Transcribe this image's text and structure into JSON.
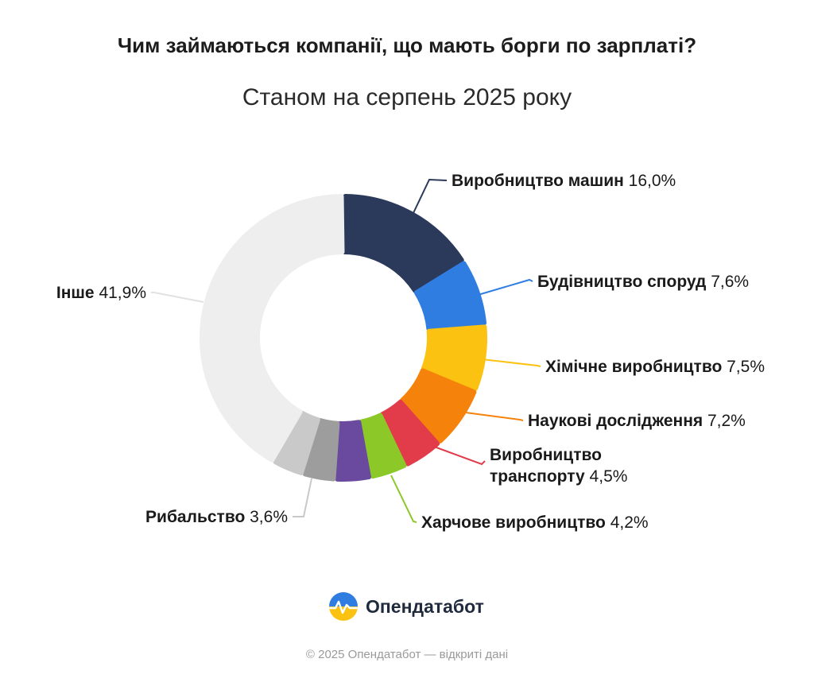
{
  "header": {
    "title": "Чим займаються компанії, що мають борги по зарплаті?",
    "subtitle": "Станом на серпень 2025 року"
  },
  "brand": {
    "name": "Опендатабот",
    "logo_icon": "opendatabot-logo-icon"
  },
  "footer": {
    "text": "© 2025 Опендатабот — відкриті дані"
  },
  "chart_data": {
    "type": "pie",
    "subtype": "donut",
    "labels_outside_with_leaders": true,
    "slices": [
      {
        "label": "Виробництво машин",
        "value": 16.0,
        "value_label": "16,0%",
        "color": "#2b3a5a"
      },
      {
        "label": "Будівництво споруд",
        "value": 7.6,
        "value_label": "7,6%",
        "color": "#2f7de1"
      },
      {
        "label": "Хімічне виробництво",
        "value": 7.5,
        "value_label": "7,5%",
        "color": "#fbc211"
      },
      {
        "label": "Наукові дослідження",
        "value": 7.2,
        "value_label": "7,2%",
        "color": "#f5820b"
      },
      {
        "label": "Виробництво транспорту",
        "value": 4.5,
        "value_label": "4,5%",
        "color": "#e23c4b"
      },
      {
        "label": "Харчове виробництво",
        "value": 4.2,
        "value_label": "4,2%",
        "color": "#8cc928"
      },
      {
        "label": "",
        "value": 4.0,
        "value_label": "",
        "color": "#6a4a9e"
      },
      {
        "label": "",
        "value": 3.7,
        "value_label": "",
        "color": "#9d9d9d"
      },
      {
        "label": "Рибальство",
        "value": 3.6,
        "value_label": "3,6%",
        "color": "#c9c9c9"
      },
      {
        "label": "Інше",
        "value": 41.9,
        "value_label": "41,9%",
        "color": "#eeeeee"
      }
    ]
  }
}
